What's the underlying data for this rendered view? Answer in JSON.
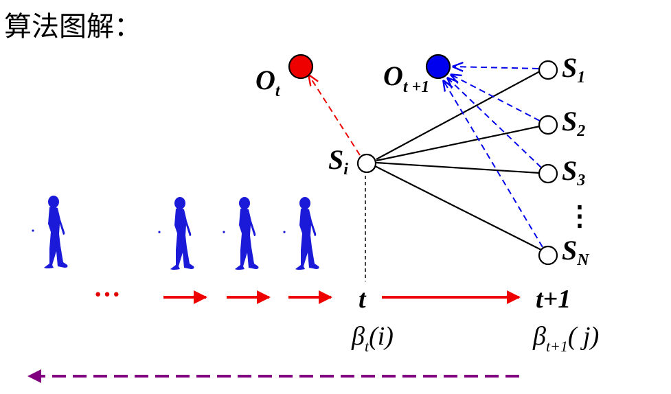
{
  "title": "算法图解：",
  "observations": [
    {
      "base": "O",
      "sub": "t",
      "color": "#ee0000"
    },
    {
      "base": "O",
      "sub": "t +1",
      "color": "#0000ee"
    }
  ],
  "current_state": {
    "base": "S",
    "sub": "i"
  },
  "next_states": [
    {
      "base": "S",
      "sub": "1"
    },
    {
      "base": "S",
      "sub": "2"
    },
    {
      "base": "S",
      "sub": "3"
    },
    {
      "base": "S",
      "sub": "N"
    }
  ],
  "vertical_ellipsis": "⋮",
  "timeline": {
    "ellipsis": "···",
    "t_label": "t",
    "t1_label": "t+1",
    "beta_t": {
      "symbol": "β",
      "sub": "t",
      "arg": "(i)"
    },
    "beta_t1": {
      "symbol": "β",
      "sub": "t+1",
      "arg": "( j)"
    }
  },
  "colors": {
    "red": "#ee0000",
    "blue": "#0000ee",
    "walker": "#1a1ad8",
    "purple": "#800080",
    "black": "#000000"
  }
}
